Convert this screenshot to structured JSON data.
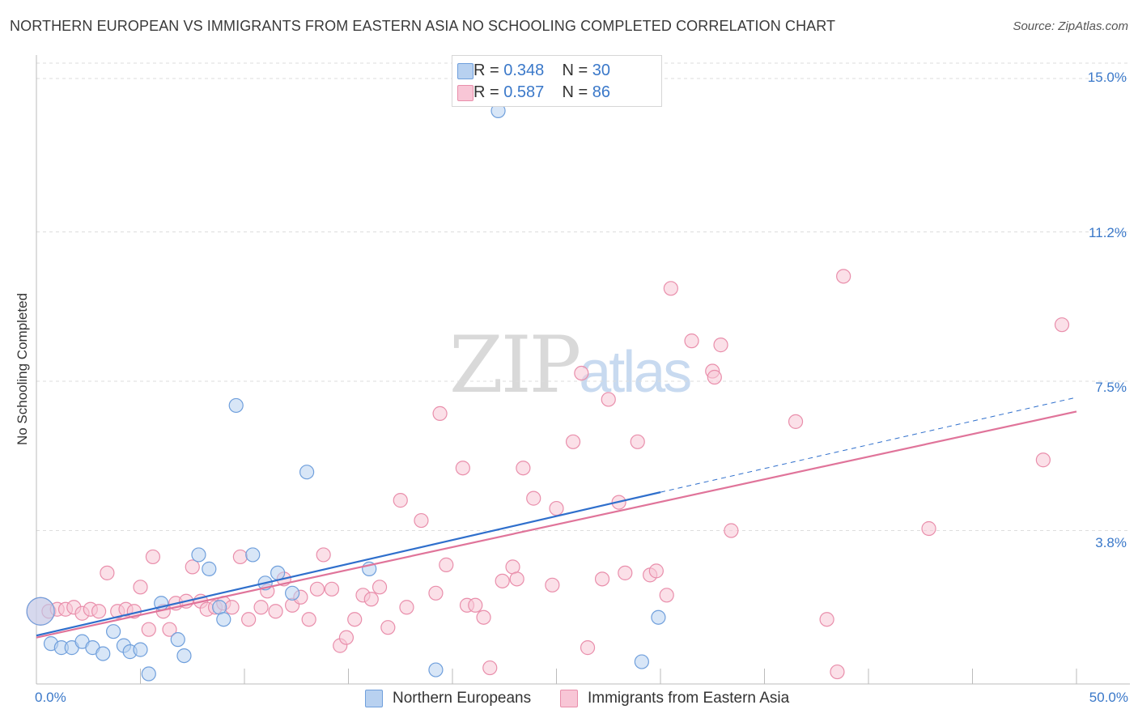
{
  "title": "NORTHERN EUROPEAN VS IMMIGRANTS FROM EASTERN ASIA NO SCHOOLING COMPLETED CORRELATION CHART",
  "source": "Source: ZipAtlas.com",
  "watermark": {
    "zip": "ZIP",
    "atlas": "atlas"
  },
  "legend_top": {
    "rows": [
      {
        "r_label": "R =",
        "r_value": "0.348",
        "n_label": "N =",
        "n_value": "30"
      },
      {
        "r_label": "R =",
        "r_value": "0.587",
        "n_label": "N =",
        "n_value": "86"
      }
    ]
  },
  "colors": {
    "blue_fill": "#b8d1f0",
    "blue_stroke": "#6f9fdc",
    "blue_line": "#2f6fcc",
    "pink_fill": "#f8c6d6",
    "pink_stroke": "#e98eab",
    "pink_line": "#e0749a",
    "grid": "#dddddd",
    "tick_text": "#3a78c9"
  },
  "chart_data": {
    "type": "scatter",
    "title": "NORTHERN EUROPEAN VS IMMIGRANTS FROM EASTERN ASIA NO SCHOOLING COMPLETED CORRELATION CHART",
    "xlabel": "",
    "ylabel": "No Schooling Completed",
    "xlim": [
      0,
      50
    ],
    "ylim": [
      0,
      15.7
    ],
    "x_tick_labels": [
      "0.0%",
      "50.0%"
    ],
    "y_ticks": [
      3.8,
      7.5,
      11.2,
      15.0
    ],
    "y_tick_labels": [
      "3.8%",
      "7.5%",
      "11.2%",
      "15.0%"
    ],
    "grid": "horizontal dashed",
    "legend_position": "top-center",
    "series": [
      {
        "name": "Northern Europeans",
        "color": "#6f9fdc",
        "r": 0.348,
        "n": 30,
        "trend": {
          "x": [
            0,
            30
          ],
          "y": [
            1.2,
            4.75
          ],
          "dashed_extension_to": [
            50,
            7.1
          ]
        },
        "points": [
          [
            0.2,
            1.8
          ],
          [
            0.7,
            1.0
          ],
          [
            1.2,
            0.9
          ],
          [
            1.7,
            0.9
          ],
          [
            2.2,
            1.05
          ],
          [
            2.7,
            0.9
          ],
          [
            3.2,
            0.75
          ],
          [
            3.7,
            1.3
          ],
          [
            4.2,
            0.95
          ],
          [
            4.5,
            0.8
          ],
          [
            5.0,
            0.85
          ],
          [
            5.4,
            0.25
          ],
          [
            6.0,
            2.0
          ],
          [
            6.8,
            1.1
          ],
          [
            7.1,
            0.7
          ],
          [
            7.8,
            3.2
          ],
          [
            8.3,
            2.85
          ],
          [
            8.8,
            1.9
          ],
          [
            9.0,
            1.6
          ],
          [
            9.6,
            6.9
          ],
          [
            10.4,
            3.2
          ],
          [
            11.0,
            2.5
          ],
          [
            11.6,
            2.75
          ],
          [
            12.3,
            2.25
          ],
          [
            13.0,
            5.25
          ],
          [
            16.0,
            2.85
          ],
          [
            19.2,
            0.35
          ],
          [
            22.2,
            14.2
          ],
          [
            29.1,
            0.55
          ],
          [
            29.9,
            1.65
          ]
        ]
      },
      {
        "name": "Immigrants from Eastern Asia",
        "color": "#e98eab",
        "r": 0.587,
        "n": 86,
        "trend": {
          "x": [
            0,
            50
          ],
          "y": [
            1.15,
            6.75
          ]
        },
        "points": [
          [
            0.2,
            1.8
          ],
          [
            0.6,
            1.8
          ],
          [
            1.0,
            1.85
          ],
          [
            1.4,
            1.85
          ],
          [
            1.8,
            1.9
          ],
          [
            2.2,
            1.75
          ],
          [
            2.6,
            1.85
          ],
          [
            3.0,
            1.8
          ],
          [
            3.4,
            2.75
          ],
          [
            3.9,
            1.8
          ],
          [
            4.3,
            1.85
          ],
          [
            4.7,
            1.8
          ],
          [
            5.0,
            2.4
          ],
          [
            5.4,
            1.35
          ],
          [
            5.6,
            3.15
          ],
          [
            6.1,
            1.8
          ],
          [
            6.4,
            1.35
          ],
          [
            6.7,
            2.0
          ],
          [
            7.2,
            2.05
          ],
          [
            7.5,
            2.9
          ],
          [
            7.9,
            2.05
          ],
          [
            8.2,
            1.85
          ],
          [
            8.6,
            1.9
          ],
          [
            9.0,
            2.0
          ],
          [
            9.4,
            1.9
          ],
          [
            9.8,
            3.15
          ],
          [
            10.2,
            1.6
          ],
          [
            10.8,
            1.9
          ],
          [
            11.1,
            2.3
          ],
          [
            11.5,
            1.8
          ],
          [
            11.9,
            2.6
          ],
          [
            12.3,
            1.95
          ],
          [
            12.7,
            2.15
          ],
          [
            13.1,
            1.6
          ],
          [
            13.5,
            2.35
          ],
          [
            13.8,
            3.2
          ],
          [
            14.2,
            2.35
          ],
          [
            14.6,
            0.95
          ],
          [
            14.9,
            1.15
          ],
          [
            15.3,
            1.6
          ],
          [
            15.7,
            2.2
          ],
          [
            16.1,
            2.1
          ],
          [
            16.5,
            2.4
          ],
          [
            16.9,
            1.4
          ],
          [
            17.5,
            4.55
          ],
          [
            17.8,
            1.9
          ],
          [
            18.5,
            4.05
          ],
          [
            19.2,
            2.25
          ],
          [
            19.4,
            6.7
          ],
          [
            19.7,
            2.95
          ],
          [
            20.5,
            5.35
          ],
          [
            20.7,
            1.95
          ],
          [
            21.1,
            1.95
          ],
          [
            21.5,
            1.65
          ],
          [
            21.8,
            0.4
          ],
          [
            22.4,
            2.55
          ],
          [
            22.9,
            2.9
          ],
          [
            23.1,
            2.6
          ],
          [
            23.4,
            5.35
          ],
          [
            23.9,
            4.6
          ],
          [
            24.8,
            2.45
          ],
          [
            25.0,
            4.35
          ],
          [
            25.8,
            6.0
          ],
          [
            26.2,
            7.7
          ],
          [
            26.5,
            0.9
          ],
          [
            27.2,
            2.6
          ],
          [
            27.5,
            7.05
          ],
          [
            28.0,
            4.5
          ],
          [
            28.3,
            2.75
          ],
          [
            28.9,
            6.0
          ],
          [
            29.5,
            2.7
          ],
          [
            29.8,
            2.8
          ],
          [
            30.3,
            2.2
          ],
          [
            30.5,
            9.8
          ],
          [
            31.5,
            8.5
          ],
          [
            32.5,
            7.75
          ],
          [
            32.6,
            7.6
          ],
          [
            32.9,
            8.4
          ],
          [
            33.4,
            3.8
          ],
          [
            36.5,
            6.5
          ],
          [
            38.0,
            1.6
          ],
          [
            38.5,
            0.3
          ],
          [
            38.8,
            10.1
          ],
          [
            42.9,
            3.85
          ],
          [
            48.4,
            5.55
          ],
          [
            49.3,
            8.9
          ]
        ]
      }
    ]
  }
}
